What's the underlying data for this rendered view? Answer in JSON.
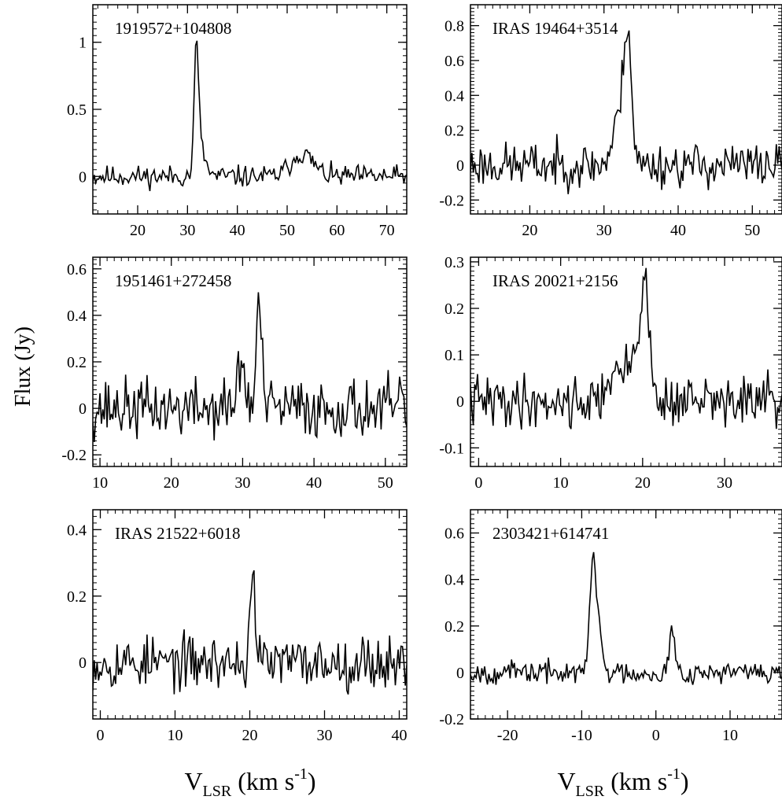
{
  "figure": {
    "ylabel": "Flux (Jy)",
    "xlabel_main": "V",
    "xlabel_sub": "LSR",
    "xlabel_units": " (km s",
    "xlabel_exp": "-1",
    "xlabel_close": ")"
  },
  "chart_data": [
    {
      "type": "line",
      "title": "1919572+104808",
      "xlim": [
        11,
        74
      ],
      "ylim": [
        -0.28,
        1.28
      ],
      "xticks": [
        20,
        30,
        40,
        50,
        60,
        70
      ],
      "xtick_labels": [
        "20",
        "30",
        "40",
        "50",
        "60",
        "70"
      ],
      "yticks": [
        0,
        0.5,
        1
      ],
      "ytick_labels": [
        "0",
        "0.5",
        "1"
      ],
      "noise": 0.05,
      "seed": 11,
      "features": [
        [
          31.8,
          0.92,
          0.45
        ],
        [
          32.8,
          0.18,
          0.9
        ],
        [
          53.0,
          0.17,
          2.2
        ]
      ]
    },
    {
      "type": "line",
      "title": "IRAS 19464+3514",
      "xlim": [
        12,
        54
      ],
      "ylim": [
        -0.28,
        0.92
      ],
      "xticks": [
        20,
        30,
        40,
        50
      ],
      "xtick_labels": [
        "20",
        "30",
        "40",
        "50"
      ],
      "yticks": [
        -0.2,
        0,
        0.2,
        0.4,
        0.6,
        0.8
      ],
      "ytick_labels": [
        "-0.2",
        "0",
        "0.2",
        "0.4",
        "0.6",
        "0.8"
      ],
      "noise": 0.08,
      "seed": 23,
      "features": [
        [
          33.2,
          0.68,
          0.5
        ],
        [
          32.2,
          0.28,
          0.9
        ]
      ]
    },
    {
      "type": "line",
      "title": "1951461+272458",
      "xlim": [
        9,
        53
      ],
      "ylim": [
        -0.25,
        0.65
      ],
      "xticks": [
        10,
        20,
        30,
        40,
        50
      ],
      "xtick_labels": [
        "10",
        "20",
        "30",
        "40",
        "50"
      ],
      "yticks": [
        -0.2,
        0,
        0.2,
        0.4,
        0.6
      ],
      "ytick_labels": [
        "-0.2",
        "0",
        "0.2",
        "0.4",
        "0.6"
      ],
      "noise": 0.08,
      "seed": 37,
      "features": [
        [
          32.3,
          0.48,
          0.35
        ],
        [
          29.8,
          0.2,
          0.5
        ]
      ]
    },
    {
      "type": "line",
      "title": "IRAS 20021+2156",
      "xlim": [
        -1,
        37
      ],
      "ylim": [
        -0.14,
        0.31
      ],
      "xticks": [
        0,
        10,
        20,
        30
      ],
      "xtick_labels": [
        "0",
        "10",
        "20",
        "30"
      ],
      "yticks": [
        -0.1,
        0,
        0.1,
        0.2,
        0.3
      ],
      "ytick_labels": [
        "-0.1",
        "0",
        "0.1",
        "0.2",
        "0.3"
      ],
      "noise": 0.035,
      "seed": 41,
      "features": [
        [
          20.2,
          0.22,
          0.6
        ],
        [
          18.6,
          0.08,
          1.2
        ],
        [
          16.0,
          0.05,
          0.6
        ]
      ]
    },
    {
      "type": "line",
      "title": "IRAS 21522+6018",
      "xlim": [
        -1,
        41
      ],
      "ylim": [
        -0.17,
        0.46
      ],
      "xticks": [
        0,
        10,
        20,
        30,
        40
      ],
      "xtick_labels": [
        "0",
        "10",
        "20",
        "30",
        "40"
      ],
      "yticks": [
        0,
        0.2,
        0.4
      ],
      "ytick_labels": [
        "0",
        "0.2",
        "0.4"
      ],
      "noise": 0.05,
      "seed": 53,
      "features": [
        [
          20.4,
          0.31,
          0.3
        ]
      ]
    },
    {
      "type": "line",
      "title": "2303421+614741",
      "xlim": [
        -25,
        17
      ],
      "ylim": [
        -0.2,
        0.7
      ],
      "xticks": [
        -20,
        -10,
        0,
        10
      ],
      "xtick_labels": [
        "-20",
        "-10",
        "0",
        "10"
      ],
      "yticks": [
        -0.2,
        0,
        0.2,
        0.4,
        0.6
      ],
      "ytick_labels": [
        "-0.2",
        "0",
        "0.2",
        "0.4",
        "0.6"
      ],
      "noise": 0.03,
      "seed": 67,
      "features": [
        [
          -8.5,
          0.5,
          0.4
        ],
        [
          -7.6,
          0.17,
          0.4
        ],
        [
          2.2,
          0.18,
          0.35
        ]
      ]
    }
  ]
}
